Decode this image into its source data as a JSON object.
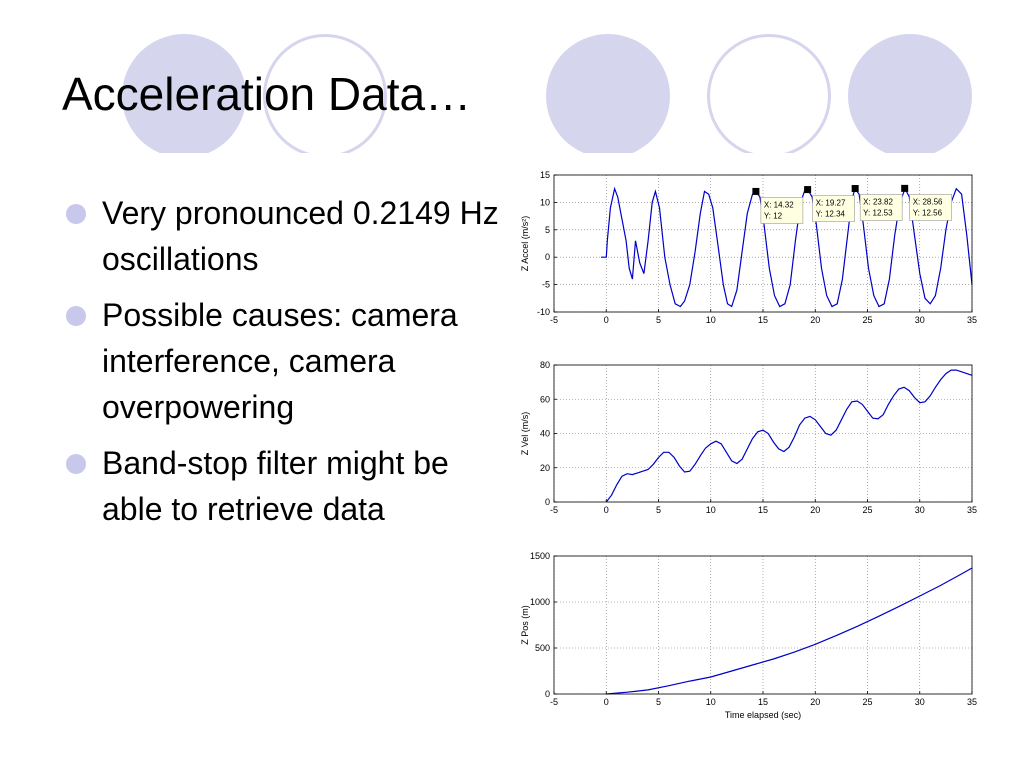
{
  "slide": {
    "title": "Acceleration Data…",
    "bullets": [
      "Very pronounced 0.2149 Hz oscillations",
      "Possible causes: camera interference, camera overpowering",
      "Band-stop filter might be able to retrieve data"
    ]
  },
  "colors": {
    "accent_circle": "#d5d5ee",
    "bullet": "#c8c8ec",
    "line": "#0000c8"
  },
  "chart_data": [
    {
      "type": "line",
      "title": "",
      "xlabel": "",
      "ylabel": "Z Accel (m/s²)",
      "xlim": [
        -5,
        35
      ],
      "ylim": [
        -10,
        15
      ],
      "xticks": [
        -5,
        0,
        5,
        10,
        15,
        20,
        25,
        30,
        35
      ],
      "yticks": [
        -10,
        -5,
        0,
        5,
        10,
        15
      ],
      "grid": true,
      "series": [
        {
          "x": [
            -0.5,
            0,
            0.1,
            0.4,
            0.8,
            1.1,
            1.5,
            1.9,
            2.2,
            2.5,
            2.8,
            3.2,
            3.6,
            4.0,
            4.4,
            4.7,
            5.1,
            5.6,
            6.1,
            6.6,
            7.1,
            7.5,
            8.0,
            8.5,
            9.0,
            9.4,
            9.8,
            10.2,
            10.7,
            11.2,
            11.6,
            12.0,
            12.5,
            13.0,
            13.5,
            14.0,
            14.3,
            14.7,
            15.1,
            15.6,
            16.1,
            16.6,
            17.1,
            17.6,
            18.1,
            18.6,
            19.0,
            19.3,
            19.7,
            20.1,
            20.6,
            21.1,
            21.6,
            22.1,
            22.6,
            23.1,
            23.5,
            23.8,
            24.2,
            24.6,
            25.1,
            25.6,
            26.1,
            26.6,
            27.1,
            27.6,
            28.1,
            28.6,
            29.0,
            29.5,
            30.0,
            30.5,
            31.0,
            31.5,
            32.0,
            32.5,
            33.0,
            33.5,
            34.0,
            34.5,
            35.0
          ],
          "y": [
            0,
            0,
            3,
            9,
            12.5,
            11,
            7,
            3,
            -2,
            -4,
            3,
            -1,
            -3,
            3,
            10,
            12,
            9,
            0,
            -5,
            -8.5,
            -9,
            -8,
            -5,
            1,
            8,
            12,
            11.5,
            9,
            2,
            -5,
            -8.5,
            -9,
            -6,
            1,
            8,
            11.5,
            12,
            11,
            6,
            -2,
            -7,
            -9,
            -8.5,
            -5,
            3,
            10,
            12.2,
            12.3,
            11,
            6,
            -2,
            -7,
            -9,
            -8.5,
            -4,
            4,
            10.5,
            12.5,
            11.5,
            6,
            -2,
            -7,
            -9,
            -8.5,
            -4,
            4,
            10,
            12.5,
            11,
            4,
            -3,
            -7.5,
            -8.5,
            -7,
            -2,
            5,
            10,
            12.5,
            11.5,
            4,
            -5
          ]
        }
      ],
      "datatips": [
        {
          "x": 14.32,
          "y": 12,
          "label_x": "X: 14.32",
          "label_y": "Y: 12"
        },
        {
          "x": 19.27,
          "y": 12.34,
          "label_x": "X: 19.27",
          "label_y": "Y: 12.34"
        },
        {
          "x": 23.82,
          "y": 12.53,
          "label_x": "X: 23.82",
          "label_y": "Y: 12.53"
        },
        {
          "x": 28.56,
          "y": 12.56,
          "label_x": "X: 28.56",
          "label_y": "Y: 12.56"
        }
      ]
    },
    {
      "type": "line",
      "title": "",
      "xlabel": "",
      "ylabel": "Z Vel (m/s)",
      "xlim": [
        -5,
        35
      ],
      "ylim": [
        0,
        80
      ],
      "xticks": [
        -5,
        0,
        5,
        10,
        15,
        20,
        25,
        30,
        35
      ],
      "yticks": [
        0,
        20,
        40,
        60,
        80
      ],
      "grid": true,
      "series": [
        {
          "x": [
            0,
            0.5,
            1.0,
            1.5,
            2.0,
            2.5,
            3.0,
            3.5,
            4.0,
            4.5,
            5.0,
            5.5,
            6.0,
            6.5,
            7.0,
            7.5,
            8.0,
            8.5,
            9.0,
            9.5,
            10.0,
            10.5,
            11.0,
            11.5,
            12.0,
            12.5,
            13.0,
            13.5,
            14.0,
            14.5,
            15.0,
            15.5,
            16.0,
            16.5,
            17.0,
            17.5,
            18.0,
            18.5,
            19.0,
            19.5,
            20.0,
            20.5,
            21.0,
            21.5,
            22.0,
            22.5,
            23.0,
            23.5,
            24.0,
            24.5,
            25.0,
            25.5,
            26.0,
            26.5,
            27.0,
            27.5,
            28.0,
            28.5,
            29.0,
            29.5,
            30.0,
            30.5,
            31.0,
            31.5,
            32.0,
            32.5,
            33.0,
            33.5,
            34.0,
            34.5,
            35.0
          ],
          "y": [
            0,
            4,
            10,
            15,
            16.5,
            16,
            17,
            18,
            19,
            22,
            26,
            29,
            29,
            26,
            21,
            17.5,
            18,
            22,
            27,
            31.5,
            34,
            35.5,
            34,
            29,
            24,
            22.5,
            25,
            31,
            37,
            41,
            42,
            40,
            35,
            31,
            29.5,
            32,
            38,
            45,
            49,
            50,
            48,
            44,
            40,
            39,
            42,
            48,
            54,
            58.5,
            59,
            57,
            53,
            49,
            48.5,
            51,
            57,
            62,
            66,
            67,
            65,
            61,
            58,
            58.5,
            62,
            67,
            71.5,
            75,
            77,
            77,
            76,
            75,
            74
          ]
        }
      ]
    },
    {
      "type": "line",
      "title": "",
      "xlabel": "Time elapsed (sec)",
      "ylabel": "Z Pos (m)",
      "xlim": [
        -5,
        35
      ],
      "ylim": [
        0,
        1500
      ],
      "xticks": [
        -5,
        0,
        5,
        10,
        15,
        20,
        25,
        30,
        35
      ],
      "yticks": [
        0,
        500,
        1000,
        1500
      ],
      "grid": true,
      "series": [
        {
          "x": [
            0,
            2,
            4,
            6,
            8,
            10,
            12,
            14,
            16,
            18,
            20,
            22,
            24,
            26,
            28,
            30,
            32,
            34,
            35
          ],
          "y": [
            0,
            20,
            45,
            90,
            140,
            185,
            250,
            315,
            380,
            455,
            540,
            635,
            735,
            840,
            950,
            1065,
            1180,
            1305,
            1370
          ]
        }
      ]
    }
  ]
}
